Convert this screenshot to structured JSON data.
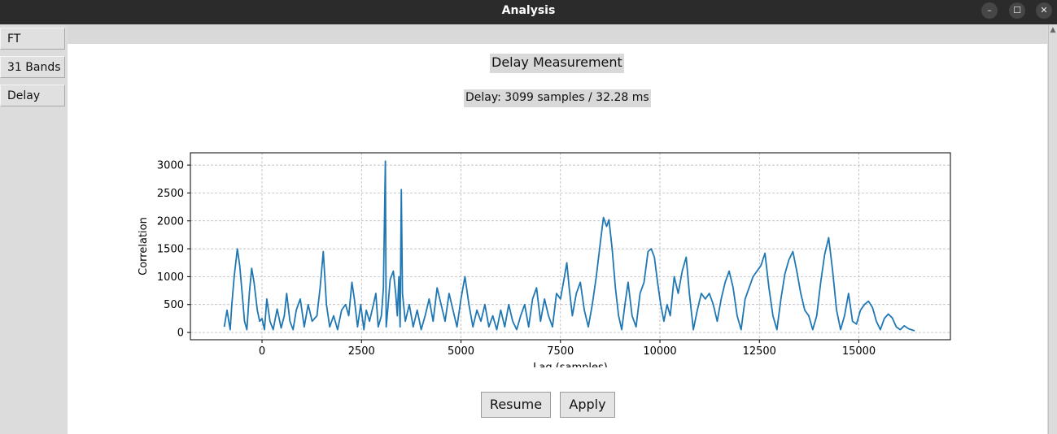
{
  "window": {
    "title": "Analysis"
  },
  "window_controls": {
    "minimize": "–",
    "maximize": "☐",
    "close": "✕"
  },
  "sidebar": {
    "items": [
      {
        "label": "FT"
      },
      {
        "label": "31 Bands"
      },
      {
        "label": "Delay"
      }
    ]
  },
  "main": {
    "heading": "Delay Measurement",
    "delay_text": "Delay: 3099 samples / 32.28 ms",
    "buttons": {
      "resume": "Resume",
      "apply": "Apply"
    }
  },
  "colors": {
    "line": "#1f77b4",
    "grid": "#b0b0b0"
  },
  "chart_data": {
    "type": "line",
    "title": "",
    "xlabel": "Lag (samples)",
    "ylabel": "Correlation",
    "xlim": [
      -1800,
      17300
    ],
    "ylim": [
      -130,
      3220
    ],
    "x_ticks": [
      0,
      2500,
      5000,
      7500,
      10000,
      12500,
      15000
    ],
    "y_ticks": [
      0,
      500,
      1000,
      1500,
      2000,
      2500,
      3000
    ],
    "grid": true,
    "series": [
      {
        "points": [
          [
            -950,
            100
          ],
          [
            -880,
            400
          ],
          [
            -800,
            50
          ],
          [
            -760,
            500
          ],
          [
            -700,
            1000
          ],
          [
            -620,
            1500
          ],
          [
            -560,
            1200
          ],
          [
            -500,
            700
          ],
          [
            -440,
            200
          ],
          [
            -380,
            50
          ],
          [
            -320,
            700
          ],
          [
            -260,
            1150
          ],
          [
            -200,
            900
          ],
          [
            -120,
            400
          ],
          [
            -60,
            200
          ],
          [
            0,
            250
          ],
          [
            60,
            50
          ],
          [
            120,
            600
          ],
          [
            200,
            200
          ],
          [
            280,
            50
          ],
          [
            380,
            420
          ],
          [
            480,
            80
          ],
          [
            560,
            300
          ],
          [
            620,
            700
          ],
          [
            700,
            200
          ],
          [
            780,
            50
          ],
          [
            860,
            400
          ],
          [
            960,
            600
          ],
          [
            1060,
            100
          ],
          [
            1160,
            500
          ],
          [
            1260,
            200
          ],
          [
            1380,
            300
          ],
          [
            1460,
            800
          ],
          [
            1540,
            1450
          ],
          [
            1620,
            500
          ],
          [
            1700,
            100
          ],
          [
            1800,
            300
          ],
          [
            1900,
            50
          ],
          [
            2000,
            400
          ],
          [
            2100,
            500
          ],
          [
            2180,
            300
          ],
          [
            2260,
            900
          ],
          [
            2320,
            600
          ],
          [
            2400,
            100
          ],
          [
            2480,
            500
          ],
          [
            2560,
            50
          ],
          [
            2620,
            400
          ],
          [
            2700,
            200
          ],
          [
            2800,
            500
          ],
          [
            2860,
            700
          ],
          [
            2920,
            100
          ],
          [
            3000,
            300
          ],
          [
            3050,
            800
          ],
          [
            3099,
            3070
          ],
          [
            3120,
            100
          ],
          [
            3160,
            400
          ],
          [
            3220,
            950
          ],
          [
            3300,
            1100
          ],
          [
            3360,
            700
          ],
          [
            3400,
            300
          ],
          [
            3440,
            1000
          ],
          [
            3470,
            100
          ],
          [
            3500,
            2560
          ],
          [
            3530,
            700
          ],
          [
            3600,
            200
          ],
          [
            3700,
            500
          ],
          [
            3800,
            100
          ],
          [
            3900,
            400
          ],
          [
            4000,
            50
          ],
          [
            4100,
            300
          ],
          [
            4200,
            600
          ],
          [
            4300,
            200
          ],
          [
            4400,
            800
          ],
          [
            4500,
            500
          ],
          [
            4600,
            200
          ],
          [
            4700,
            700
          ],
          [
            4800,
            400
          ],
          [
            4900,
            100
          ],
          [
            5000,
            600
          ],
          [
            5100,
            1000
          ],
          [
            5200,
            500
          ],
          [
            5300,
            100
          ],
          [
            5400,
            400
          ],
          [
            5500,
            200
          ],
          [
            5600,
            500
          ],
          [
            5700,
            100
          ],
          [
            5800,
            300
          ],
          [
            5900,
            50
          ],
          [
            6000,
            400
          ],
          [
            6100,
            100
          ],
          [
            6200,
            500
          ],
          [
            6300,
            200
          ],
          [
            6400,
            50
          ],
          [
            6500,
            300
          ],
          [
            6600,
            500
          ],
          [
            6700,
            100
          ],
          [
            6800,
            600
          ],
          [
            6900,
            800
          ],
          [
            7000,
            200
          ],
          [
            7100,
            600
          ],
          [
            7200,
            300
          ],
          [
            7300,
            100
          ],
          [
            7400,
            700
          ],
          [
            7500,
            600
          ],
          [
            7600,
            1000
          ],
          [
            7660,
            1250
          ],
          [
            7720,
            800
          ],
          [
            7800,
            300
          ],
          [
            7900,
            700
          ],
          [
            8000,
            900
          ],
          [
            8100,
            400
          ],
          [
            8200,
            100
          ],
          [
            8300,
            500
          ],
          [
            8400,
            1000
          ],
          [
            8500,
            1600
          ],
          [
            8580,
            2060
          ],
          [
            8660,
            1900
          ],
          [
            8720,
            2020
          ],
          [
            8800,
            1500
          ],
          [
            8880,
            800
          ],
          [
            8960,
            300
          ],
          [
            9040,
            50
          ],
          [
            9120,
            500
          ],
          [
            9200,
            900
          ],
          [
            9300,
            300
          ],
          [
            9400,
            100
          ],
          [
            9500,
            700
          ],
          [
            9600,
            900
          ],
          [
            9700,
            1450
          ],
          [
            9780,
            1500
          ],
          [
            9860,
            1350
          ],
          [
            9940,
            900
          ],
          [
            10020,
            500
          ],
          [
            10100,
            200
          ],
          [
            10180,
            500
          ],
          [
            10260,
            300
          ],
          [
            10360,
            1000
          ],
          [
            10460,
            700
          ],
          [
            10560,
            1100
          ],
          [
            10660,
            1350
          ],
          [
            10740,
            700
          ],
          [
            10840,
            50
          ],
          [
            10940,
            400
          ],
          [
            11040,
            700
          ],
          [
            11140,
            600
          ],
          [
            11240,
            700
          ],
          [
            11340,
            500
          ],
          [
            11440,
            200
          ],
          [
            11540,
            600
          ],
          [
            11640,
            900
          ],
          [
            11740,
            1100
          ],
          [
            11840,
            800
          ],
          [
            11940,
            300
          ],
          [
            12040,
            50
          ],
          [
            12140,
            600
          ],
          [
            12240,
            800
          ],
          [
            12340,
            1000
          ],
          [
            12440,
            1100
          ],
          [
            12540,
            1200
          ],
          [
            12640,
            1420
          ],
          [
            12740,
            800
          ],
          [
            12840,
            300
          ],
          [
            12940,
            50
          ],
          [
            13040,
            600
          ],
          [
            13140,
            1050
          ],
          [
            13240,
            1300
          ],
          [
            13340,
            1450
          ],
          [
            13440,
            1100
          ],
          [
            13540,
            700
          ],
          [
            13640,
            400
          ],
          [
            13740,
            300
          ],
          [
            13840,
            50
          ],
          [
            13940,
            300
          ],
          [
            14040,
            900
          ],
          [
            14140,
            1400
          ],
          [
            14240,
            1700
          ],
          [
            14340,
            1100
          ],
          [
            14440,
            400
          ],
          [
            14540,
            50
          ],
          [
            14640,
            300
          ],
          [
            14740,
            700
          ],
          [
            14840,
            200
          ],
          [
            14940,
            150
          ],
          [
            15040,
            400
          ],
          [
            15140,
            500
          ],
          [
            15240,
            560
          ],
          [
            15340,
            450
          ],
          [
            15440,
            200
          ],
          [
            15540,
            50
          ],
          [
            15640,
            250
          ],
          [
            15740,
            330
          ],
          [
            15840,
            260
          ],
          [
            15940,
            100
          ],
          [
            16040,
            50
          ],
          [
            16140,
            120
          ],
          [
            16240,
            70
          ],
          [
            16400,
            30
          ]
        ]
      }
    ]
  }
}
